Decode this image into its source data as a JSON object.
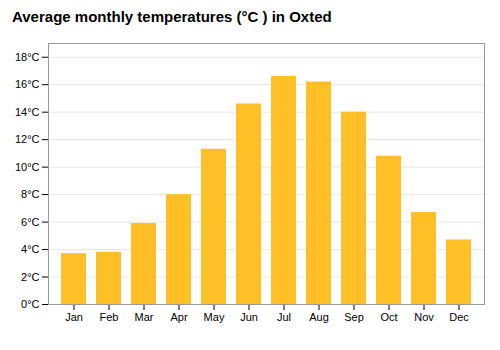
{
  "chart_data": {
    "type": "bar",
    "title": "Average monthly temperatures (°C ) in Oxted",
    "categories": [
      "Jan",
      "Feb",
      "Mar",
      "Apr",
      "May",
      "Jun",
      "Jul",
      "Aug",
      "Sep",
      "Oct",
      "Nov",
      "Dec"
    ],
    "values": [
      3.7,
      3.8,
      5.9,
      8.0,
      11.3,
      14.6,
      16.6,
      16.2,
      14.0,
      10.8,
      6.7,
      4.7
    ],
    "color": "#FFC027",
    "ylim": [
      0,
      19
    ],
    "yticks": [
      {
        "value": 0,
        "label": "0°C"
      },
      {
        "value": 2,
        "label": "2°C"
      },
      {
        "value": 4,
        "label": "4°C"
      },
      {
        "value": 6,
        "label": "6°C"
      },
      {
        "value": 8,
        "label": "8°C"
      },
      {
        "value": 10,
        "label": "10°C"
      },
      {
        "value": 12,
        "label": "12°C"
      },
      {
        "value": 14,
        "label": "14°C"
      },
      {
        "value": 16,
        "label": "16°C"
      },
      {
        "value": 18,
        "label": "18°C"
      }
    ],
    "grid": true
  }
}
